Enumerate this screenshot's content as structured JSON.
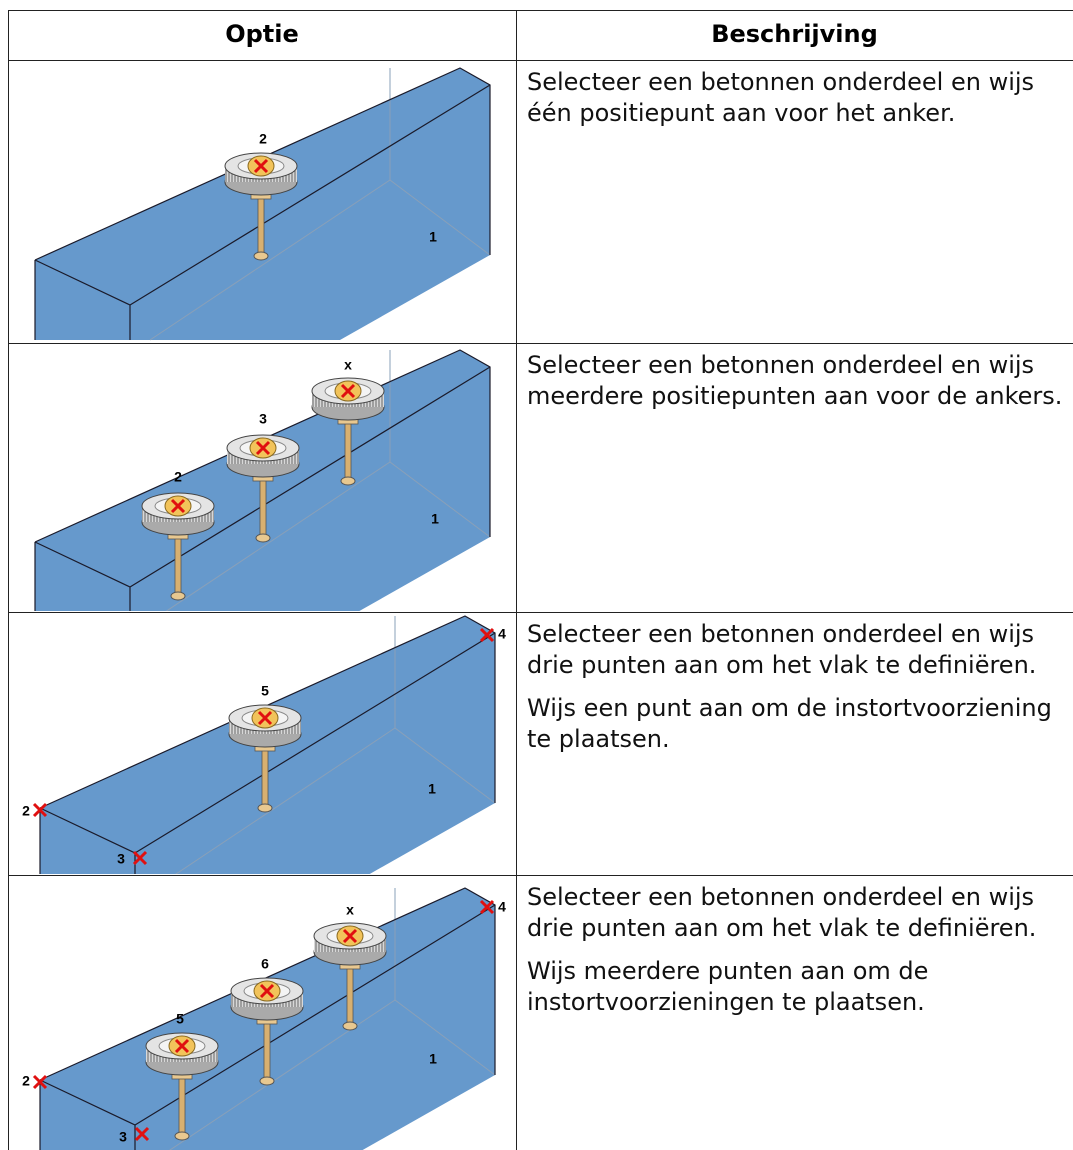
{
  "table": {
    "header": [
      "Optie",
      "Beschrijving"
    ],
    "rows": [
      {
        "image_labels": [
          "2",
          "1"
        ],
        "description": [
          "Selecteer een betonnen onderdeel en wijs één positiepunt aan voor het anker."
        ]
      },
      {
        "image_labels": [
          "x",
          "3",
          "2",
          "1"
        ],
        "description": [
          "Selecteer een betonnen onderdeel en wijs meerdere positiepunten aan voor de ankers."
        ]
      },
      {
        "image_labels": [
          "4",
          "5",
          "1",
          "2",
          "3"
        ],
        "description": [
          "Selecteer een betonnen onderdeel en wijs drie punten aan om het vlak te definiëren.",
          "Wijs een punt aan om de instortvoorziening te plaatsen."
        ]
      },
      {
        "image_labels": [
          "x",
          "6",
          "5",
          "4",
          "1",
          "2",
          "3"
        ],
        "description": [
          "Selecteer een betonnen onderdeel en wijs drie punten aan om het vlak te definiëren.",
          "Wijs meerdere punten aan om de instortvoorzieningen te plaatsen."
        ]
      }
    ]
  }
}
